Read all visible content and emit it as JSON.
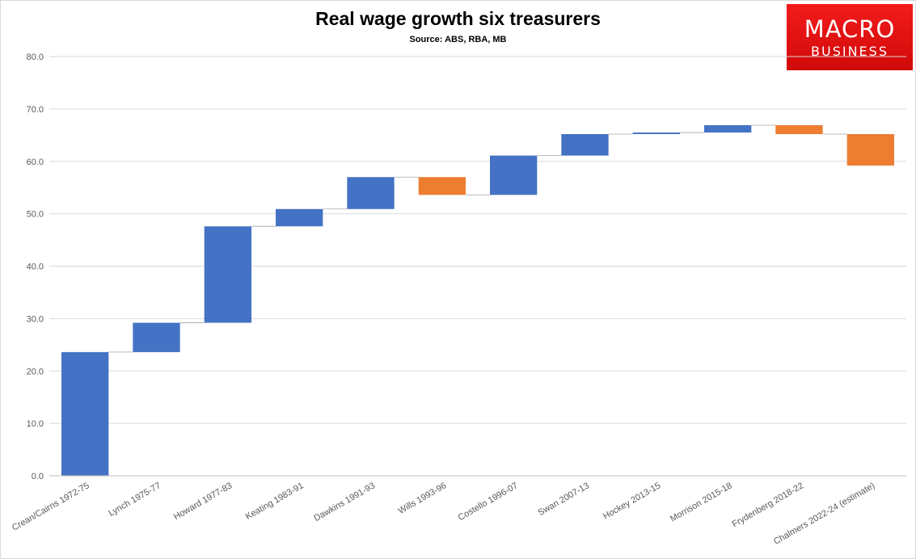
{
  "chart_data": {
    "type": "waterfall",
    "title": "Real wage growth six treasurers",
    "subtitle": "Source: ABS, RBA, MB",
    "xlabel": "",
    "ylabel": "",
    "ylim": [
      0,
      80
    ],
    "ytick_step": 10,
    "ytick_labels": [
      "0.0",
      "10.0",
      "20.0",
      "30.0",
      "40.0",
      "50.0",
      "60.0",
      "70.0",
      "80.0"
    ],
    "grid": true,
    "legend": "none",
    "colors": {
      "increase": "#4472C4",
      "decrease": "#ED7D31"
    },
    "categories": [
      "Crean/Cairns 1972-75",
      "Lynch 1975-77",
      "Howard 1977-83",
      "Keating 1983-91",
      "Dawkins 1991-93",
      "Wills 1993-96",
      "Costello 1996-07",
      "Swan 2007-13",
      "Hockey 2013-15",
      "Morrison 2015-18",
      "Frydenberg 2018-22",
      "Chalmers 2022-24 (estimate)"
    ],
    "values": [
      23.6,
      5.6,
      18.4,
      3.3,
      6.1,
      -3.4,
      7.5,
      4.1,
      0.3,
      1.4,
      -1.7,
      -6.0
    ]
  },
  "logo": {
    "line1": "MACRO",
    "line2": "BUSINESS"
  }
}
